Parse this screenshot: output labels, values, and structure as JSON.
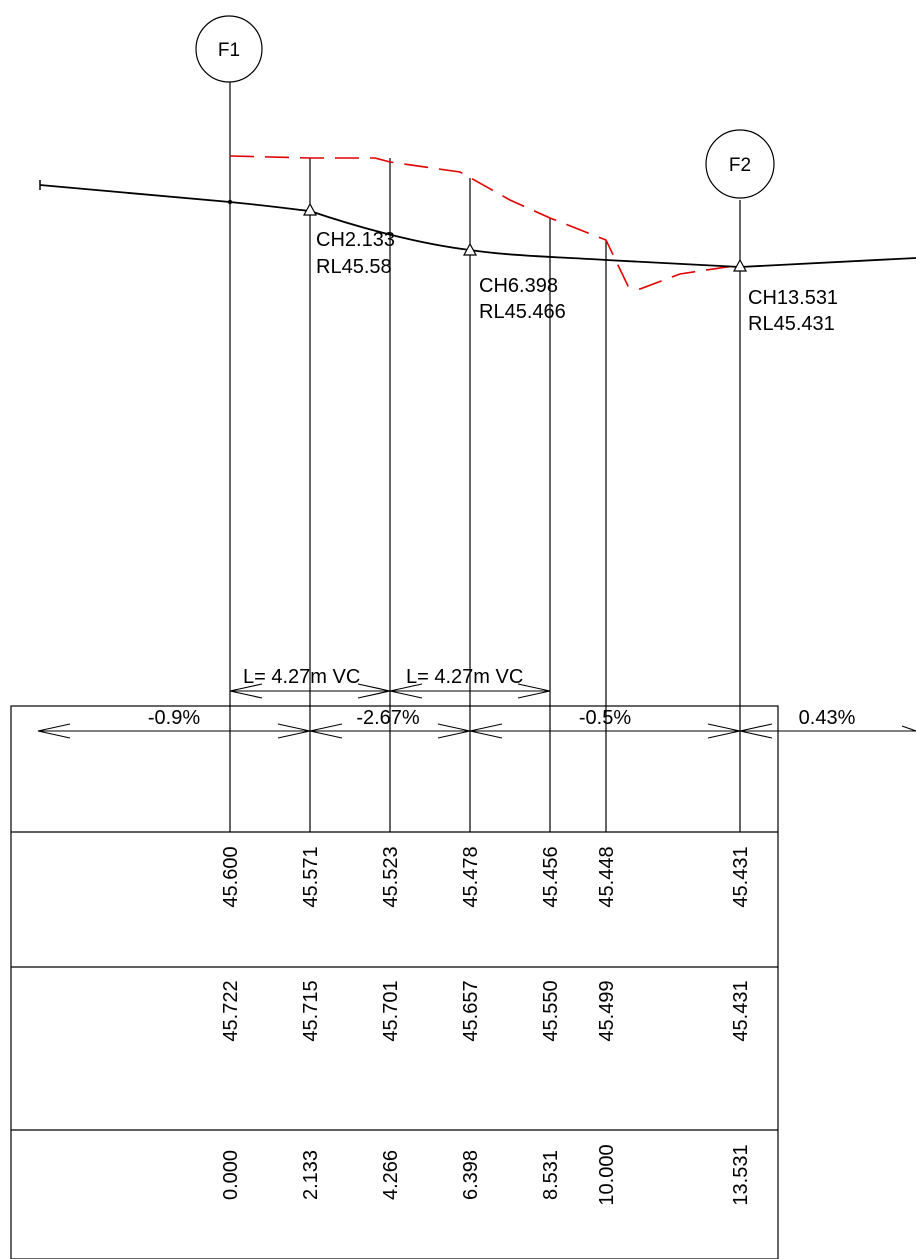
{
  "markers": [
    {
      "id": "F1",
      "label": "F1"
    },
    {
      "id": "F2",
      "label": "F2"
    }
  ],
  "ip_labels": [
    {
      "chainage": "CH2.133",
      "level": "RL45.58"
    },
    {
      "chainage": "CH6.398",
      "level": "RL45.466"
    },
    {
      "chainage": "CH13.531",
      "level": "RL45.431"
    }
  ],
  "vertical_curves": [
    {
      "label": "L= 4.27m VC"
    },
    {
      "label": "L= 4.27m VC"
    }
  ],
  "grades": [
    "-0.9%",
    "-2.67%",
    "-0.5%",
    "0.43%"
  ],
  "table": {
    "rows": [
      [
        "45.600",
        "45.571",
        "45.523",
        "45.478",
        "45.456",
        "45.448",
        "45.431"
      ],
      [
        "45.722",
        "45.715",
        "45.701",
        "45.657",
        "45.550",
        "45.499",
        "45.431"
      ],
      [
        "0.000",
        "2.133",
        "4.266",
        "6.398",
        "8.531",
        "10.000",
        "13.531"
      ]
    ]
  },
  "colors": {
    "design_line": "#000000",
    "existing_surface": "#e00000"
  }
}
